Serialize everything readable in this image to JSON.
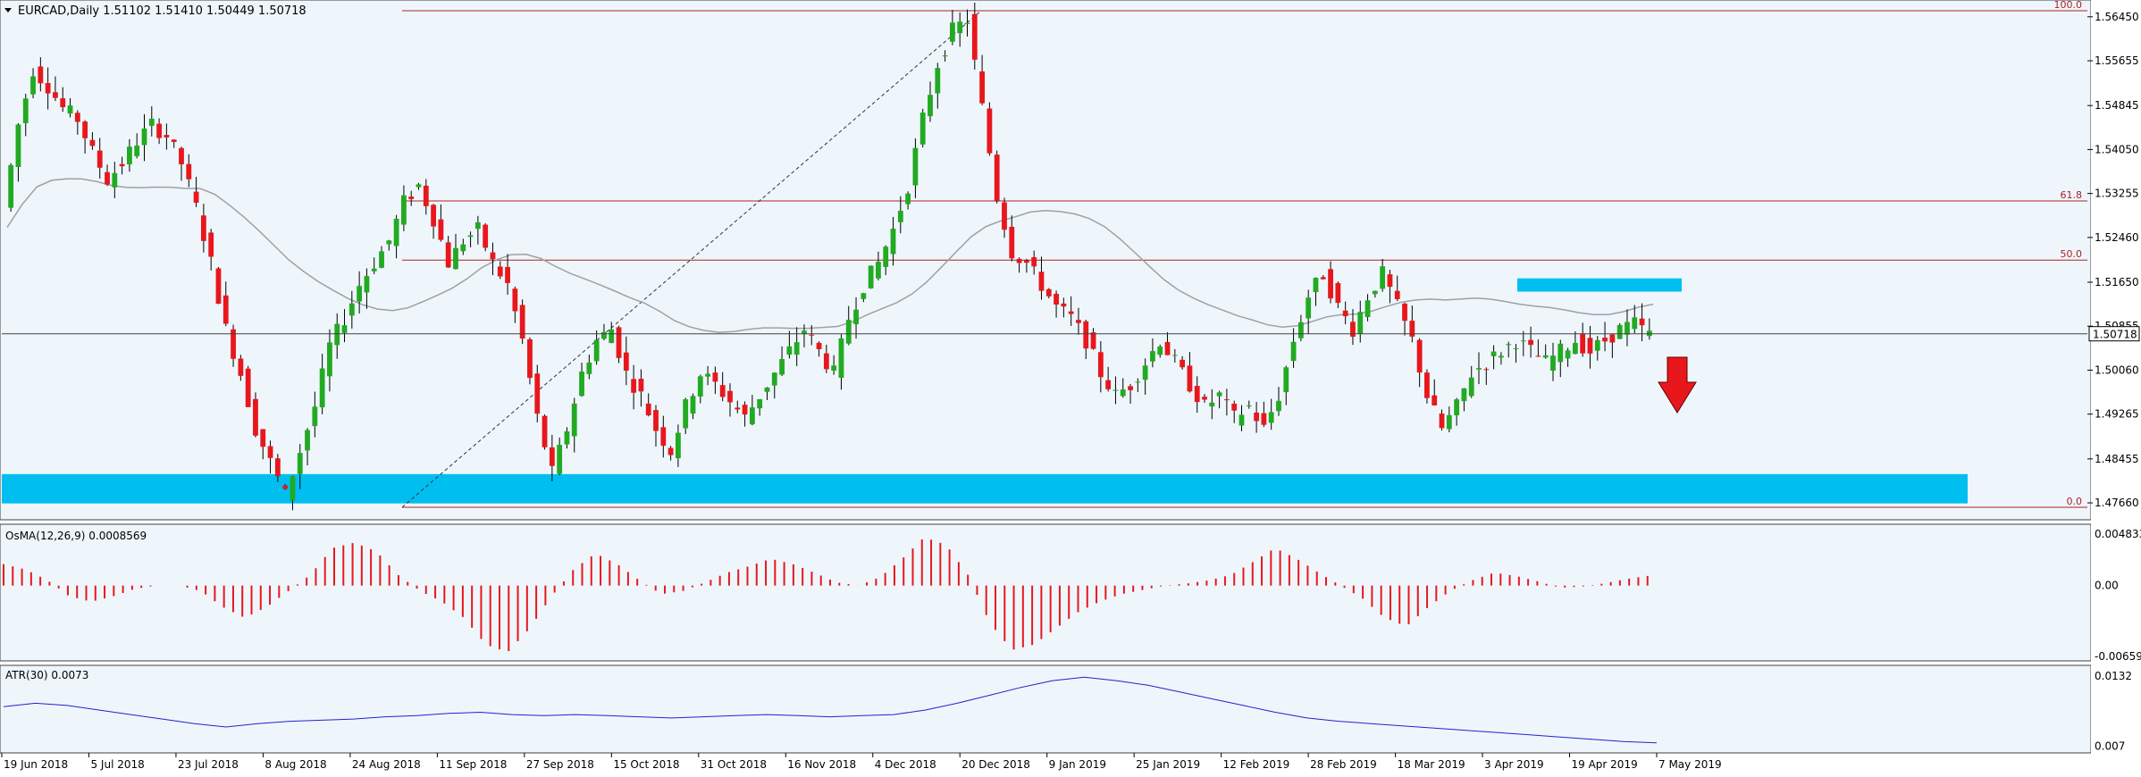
{
  "header": {
    "symbol_line": "EURCAD,Daily  1.51102 1.51410 1.50449 1.50718",
    "menu_icon": "triangle-down-icon"
  },
  "colors": {
    "background": "#eef6fc",
    "bull": "#22aa22",
    "bear": "#e8171c",
    "ma": "#a0a0a0",
    "fib": "#b02020",
    "zone": "#00bff0",
    "atr": "#2222cc",
    "arrow": "#e8171c"
  },
  "main_panel": {
    "price_axis_labels": [
      "1.56450",
      "1.55655",
      "1.54845",
      "1.54050",
      "1.53255",
      "1.52460",
      "1.51650",
      "1.50855",
      "1.50060",
      "1.49265",
      "1.48455",
      "1.47660"
    ],
    "current_price_tag": "1.50718",
    "fib_levels": [
      {
        "label": "100.0",
        "value": 1.5656
      },
      {
        "label": "61.8",
        "value": 1.5312
      },
      {
        "label": "50.0",
        "value": 1.5205
      },
      {
        "label": "0.0",
        "value": 1.4758
      }
    ],
    "horizontal_line": 1.50718,
    "support_zone": {
      "from": 1.4765,
      "to": 1.4818
    },
    "resistance_zone": {
      "from": 1.5148,
      "to": 1.5172
    },
    "arrow": "arrow-down-icon"
  },
  "osma_panel": {
    "title": "OsMA(12,26,9) 0.0008569",
    "axis_labels": [
      "0.0048336",
      "0.00",
      "-0.0065968"
    ],
    "range": [
      -0.0066,
      0.0048
    ]
  },
  "atr_panel": {
    "title": "ATR(30) 0.0073",
    "axis_labels": [
      "0.0132",
      "0.007"
    ],
    "range": [
      0.0068,
      0.0136
    ]
  },
  "time_axis_labels": [
    "19 Jun 2018",
    "5 Jul 2018",
    "23 Jul 2018",
    "8 Aug 2018",
    "24 Aug 2018",
    "11 Sep 2018",
    "27 Sep 2018",
    "15 Oct 2018",
    "31 Oct 2018",
    "16 Nov 2018",
    "4 Dec 2018",
    "20 Dec 2018",
    "9 Jan 2019",
    "25 Jan 2019",
    "12 Feb 2019",
    "28 Feb 2019",
    "18 Mar 2019",
    "3 Apr 2019",
    "19 Apr 2019",
    "7 May 2019"
  ],
  "chart_data": {
    "type": "candlestick",
    "title": "EURCAD,Daily  1.51102 1.51410 1.50449 1.50718",
    "close_path": [
      1.53,
      1.545,
      1.555,
      1.552,
      1.548,
      1.546,
      1.54,
      1.535,
      1.538,
      1.542,
      1.545,
      1.543,
      1.538,
      1.53,
      1.52,
      1.508,
      1.5,
      1.49,
      1.484,
      1.478,
      1.486,
      1.494,
      1.505,
      1.51,
      1.516,
      1.52,
      1.524,
      1.531,
      1.534,
      1.528,
      1.52,
      1.524,
      1.526,
      1.52,
      1.516,
      1.506,
      1.492,
      1.482,
      1.49,
      1.5,
      1.506,
      1.508,
      1.5,
      1.496,
      1.49,
      1.486,
      1.494,
      1.5,
      1.498,
      1.495,
      1.492,
      1.496,
      1.5,
      1.504,
      1.508,
      1.504,
      1.5,
      1.51,
      1.516,
      1.52,
      1.526,
      1.534,
      1.546,
      1.556,
      1.562,
      1.564,
      1.548,
      1.532,
      1.522,
      1.52,
      1.516,
      1.512,
      1.51,
      1.506,
      1.5,
      1.496,
      1.498,
      1.502,
      1.506,
      1.502,
      1.498,
      1.494,
      1.496,
      1.492,
      1.494,
      1.49,
      1.496,
      1.506,
      1.514,
      1.518,
      1.512,
      1.508,
      1.514,
      1.518,
      1.512,
      1.506,
      1.496,
      1.49,
      1.494,
      1.5,
      1.502,
      1.504,
      1.506,
      1.504,
      1.502,
      1.504,
      1.506,
      1.504,
      1.506,
      1.508,
      1.509,
      1.507
    ],
    "atr_path": [
      0.0105,
      0.0108,
      0.0106,
      0.0102,
      0.0098,
      0.0094,
      0.009,
      0.0087,
      0.009,
      0.0092,
      0.0093,
      0.0094,
      0.0096,
      0.0097,
      0.0099,
      0.01,
      0.0098,
      0.0097,
      0.0098,
      0.0097,
      0.0096,
      0.0095,
      0.0096,
      0.0097,
      0.0098,
      0.0097,
      0.0096,
      0.0097,
      0.0098,
      0.0102,
      0.0108,
      0.0115,
      0.0122,
      0.0128,
      0.0131,
      0.0128,
      0.0124,
      0.0118,
      0.0112,
      0.0106,
      0.01,
      0.0095,
      0.0092,
      0.009,
      0.0088,
      0.0086,
      0.0084,
      0.0082,
      0.008,
      0.0078,
      0.0076,
      0.0074,
      0.0073
    ],
    "osma_path": [
      0.002,
      0.0015,
      0.0005,
      -0.001,
      -0.0015,
      -0.001,
      -0.0003,
      0.0,
      0.0,
      -0.0005,
      -0.002,
      -0.003,
      -0.002,
      -0.0005,
      0.001,
      0.0035,
      0.004,
      0.0032,
      0.001,
      -0.0005,
      -0.0015,
      -0.003,
      -0.0055,
      -0.0062,
      -0.004,
      -0.001,
      0.0015,
      0.003,
      0.002,
      0.0005,
      -0.0008,
      -0.0005,
      0.0003,
      0.0012,
      0.0018,
      0.0025,
      0.002,
      0.0012,
      0.0003,
      0.0,
      0.0008,
      0.0025,
      0.0045,
      0.0038,
      0.001,
      -0.0035,
      -0.006,
      -0.0055,
      -0.004,
      -0.0025,
      -0.0015,
      -0.0008,
      -0.0004,
      0.0,
      0.0002,
      0.0005,
      0.001,
      0.0022,
      0.0035,
      0.0025,
      0.0012,
      0.0,
      -0.0012,
      -0.003,
      -0.0038,
      -0.002,
      -0.0005,
      0.0005,
      0.0012,
      0.0009,
      0.0004,
      -0.0002,
      -0.0001,
      0.0002,
      0.0006,
      0.0009
    ]
  }
}
